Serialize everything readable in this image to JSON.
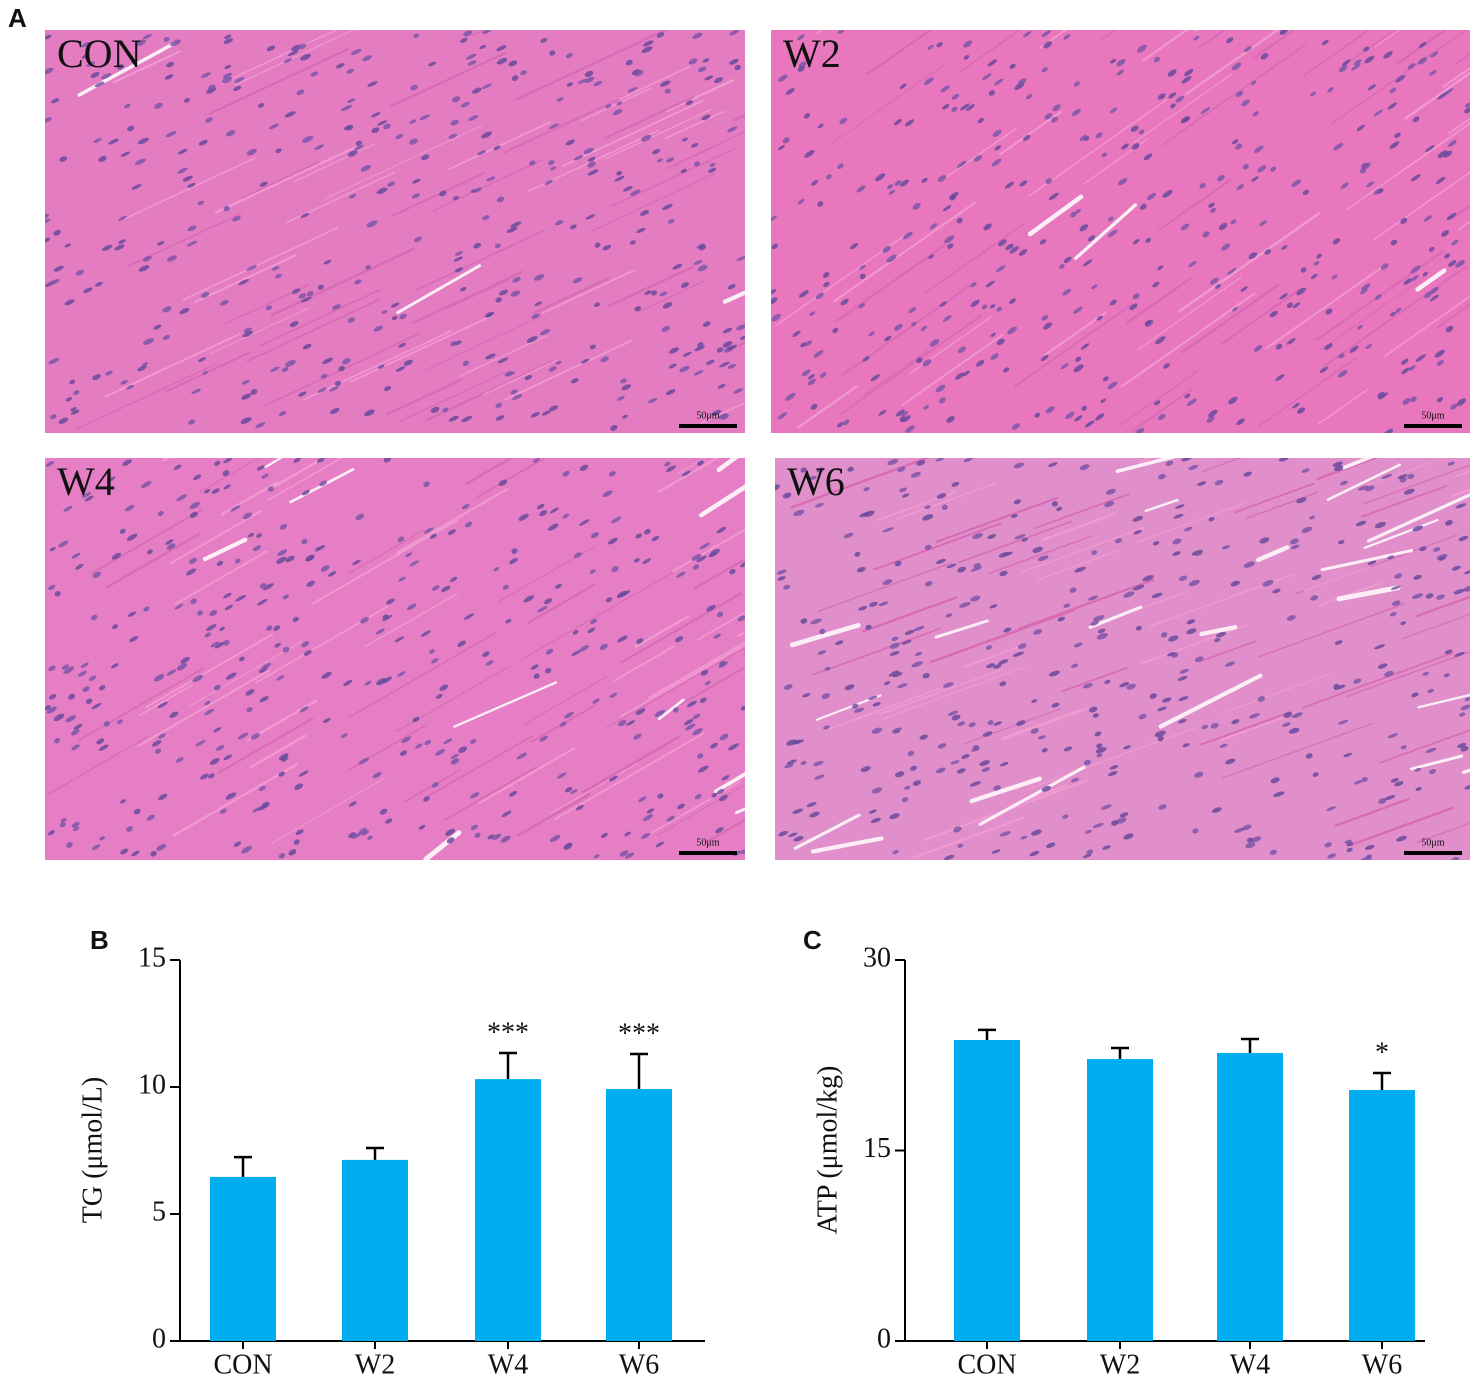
{
  "panels": {
    "label": "A",
    "images": [
      {
        "label": "CON",
        "scale_bar": "50μm"
      },
      {
        "label": "W2",
        "scale_bar": "50μm"
      },
      {
        "label": "W4",
        "scale_bar": "50μm"
      },
      {
        "label": "W6",
        "scale_bar": "50μm"
      }
    ]
  },
  "chart_data": [
    {
      "type": "bar",
      "panel_label": "B",
      "y_label": "TG (μmol/L)",
      "categories": [
        "CON",
        "W2",
        "W4",
        "W6"
      ],
      "values": [
        6.46,
        7.13,
        10.31,
        9.92
      ],
      "errors": [
        0.78,
        0.47,
        1.03,
        1.38
      ],
      "bar_labels": [
        null,
        null,
        "***",
        "***"
      ],
      "color": "#00aeef",
      "ylim": [
        0,
        15
      ],
      "yticks": [
        0,
        5,
        10,
        15
      ]
    },
    {
      "type": "bar",
      "panel_label": "C",
      "y_label": "ATP (μmol/kg)",
      "categories": [
        "CON",
        "W2",
        "W4",
        "W6"
      ],
      "values": [
        23.7,
        22.2,
        22.68,
        19.76
      ],
      "errors": [
        0.8,
        0.87,
        1.1,
        1.34
      ],
      "bar_labels": [
        null,
        null,
        null,
        "*"
      ],
      "color": "#00aeef",
      "ylim": [
        0,
        30
      ],
      "yticks": [
        0,
        15,
        30
      ]
    }
  ]
}
